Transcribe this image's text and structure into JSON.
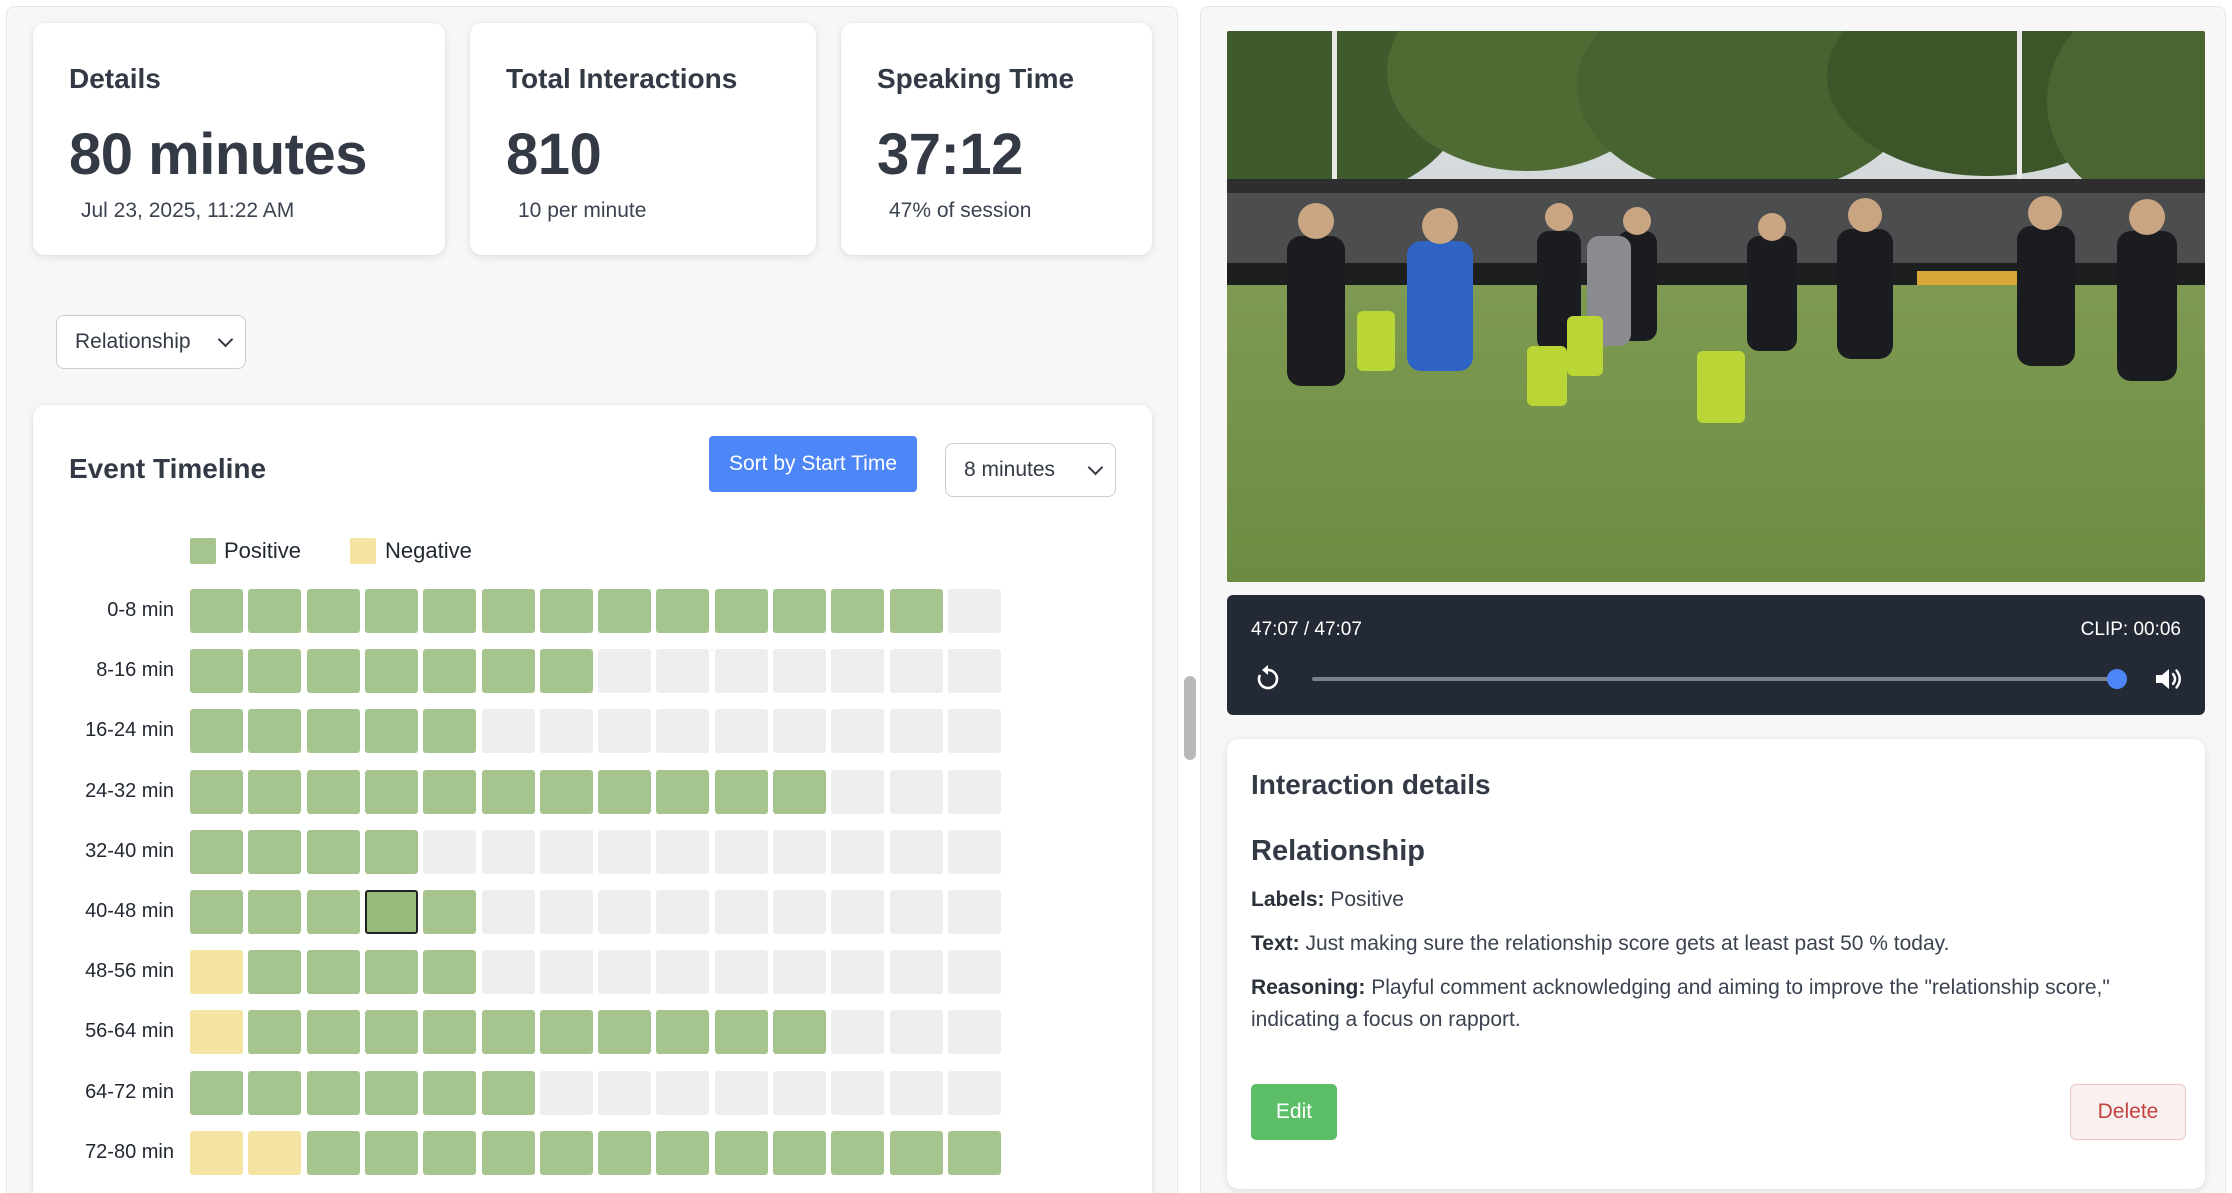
{
  "stats": {
    "details": {
      "title": "Details",
      "value": "80 minutes",
      "sub": "Jul 23, 2025, 11:22 AM"
    },
    "interactions": {
      "title": "Total Interactions",
      "value": "810",
      "sub": "10 per minute"
    },
    "speaking": {
      "title": "Speaking Time",
      "value": "37:12",
      "sub": "47% of session"
    }
  },
  "filter": {
    "selected": "Relationship"
  },
  "timeline": {
    "title": "Event Timeline",
    "sort_label": "Sort by Start Time",
    "bucket_selected": "8 minutes",
    "legend": {
      "positive": "Positive",
      "negative": "Negative"
    },
    "colors": {
      "positive": "#a6c48e",
      "negative": "#f4e3a1",
      "empty": "#ededee",
      "selected_border": "#222222"
    },
    "rows": [
      {
        "label": "0-8 min",
        "cells": [
          "p",
          "p",
          "p",
          "p",
          "p",
          "p",
          "p",
          "p",
          "p",
          "p",
          "p",
          "p",
          "p"
        ]
      },
      {
        "label": "8-16 min",
        "cells": [
          "p",
          "p",
          "p",
          "p",
          "p",
          "p",
          "p"
        ]
      },
      {
        "label": "16-24 min",
        "cells": [
          "p",
          "p",
          "p",
          "p",
          "p"
        ]
      },
      {
        "label": "24-32 min",
        "cells": [
          "p",
          "p",
          "p",
          "p",
          "p",
          "p",
          "p",
          "p",
          "p",
          "p",
          "p"
        ]
      },
      {
        "label": "32-40 min",
        "cells": [
          "p",
          "p",
          "p",
          "p"
        ]
      },
      {
        "label": "40-48 min",
        "cells": [
          "p",
          "p",
          "p",
          "s",
          "p"
        ]
      },
      {
        "label": "48-56 min",
        "cells": [
          "n",
          "p",
          "p",
          "p",
          "p"
        ]
      },
      {
        "label": "56-64 min",
        "cells": [
          "n",
          "p",
          "p",
          "p",
          "p",
          "p",
          "p",
          "p",
          "p",
          "p",
          "p"
        ]
      },
      {
        "label": "64-72 min",
        "cells": [
          "p",
          "p",
          "p",
          "p",
          "p",
          "p"
        ]
      },
      {
        "label": "72-80 min",
        "cells": [
          "n",
          "n",
          "p",
          "p",
          "p",
          "p",
          "p",
          "p",
          "p",
          "p",
          "p",
          "p",
          "p",
          "p"
        ]
      }
    ],
    "max_cells": 14
  },
  "player": {
    "time": "47:07 / 47:07",
    "clip": "CLIP: 00:06",
    "progress": 1.0,
    "icons": {
      "replay": "replay-icon",
      "volume": "volume-icon"
    }
  },
  "details": {
    "title": "Interaction details",
    "category": "Relationship",
    "labels_key": "Labels:",
    "labels_value": "Positive",
    "text_key": "Text:",
    "text_value": "Just making sure the relationship score gets at least past 50 % today.",
    "reasoning_key": "Reasoning:",
    "reasoning_value": "Playful comment acknowledging and aiming to improve the \"relationship score,\" indicating a focus on rapport.",
    "edit_label": "Edit",
    "delete_label": "Delete"
  }
}
